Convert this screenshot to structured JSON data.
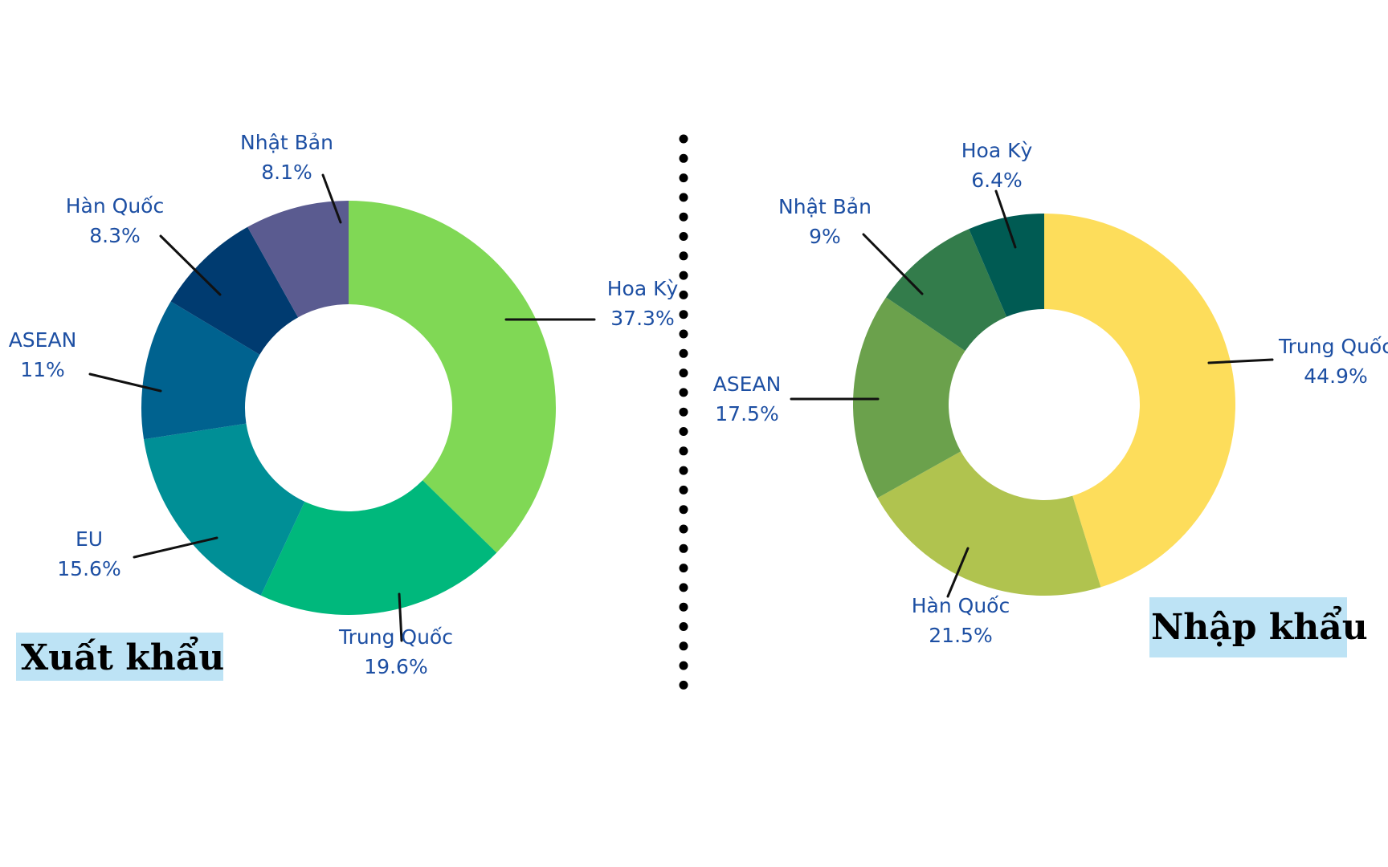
{
  "colors": {
    "label_text": "#1d4fa3",
    "title_box": "#bde3f5",
    "divider": "#000000",
    "leader": "#111111"
  },
  "chart_data": [
    {
      "type": "pie",
      "variant": "donut",
      "title": "Xuất khẩu",
      "series": [
        {
          "label": "Hoa Kỳ",
          "value": 37.3,
          "value_label": "37.3%",
          "color": "#80d855"
        },
        {
          "label": "Trung Quốc",
          "value": 19.6,
          "value_label": "19.6%",
          "color": "#00b87c"
        },
        {
          "label": "EU",
          "value": 15.6,
          "value_label": "15.6%",
          "color": "#008f96"
        },
        {
          "label": "ASEAN",
          "value": 11,
          "value_label": "11%",
          "color": "#00628f"
        },
        {
          "label": "Hàn Quốc",
          "value": 8.3,
          "value_label": "8.3%",
          "color": "#003b70"
        },
        {
          "label": "Nhật Bản",
          "value": 8.1,
          "value_label": "8.1%",
          "color": "#5a5b90"
        }
      ]
    },
    {
      "type": "pie",
      "variant": "donut",
      "title": "Nhập khẩu",
      "series": [
        {
          "label": "Trung Quốc",
          "value": 44.9,
          "value_label": "44.9%",
          "color": "#fddd5b"
        },
        {
          "label": "Hàn Quốc",
          "value": 21.5,
          "value_label": "21.5%",
          "color": "#b0c34f"
        },
        {
          "label": "ASEAN",
          "value": 17.5,
          "value_label": "17.5%",
          "color": "#6ba14c"
        },
        {
          "label": "Nhật Bản",
          "value": 9,
          "value_label": "9%",
          "color": "#337c4b"
        },
        {
          "label": "Hoa Kỳ",
          "value": 6.4,
          "value_label": "6.4%",
          "color": "#005b53"
        }
      ]
    }
  ]
}
